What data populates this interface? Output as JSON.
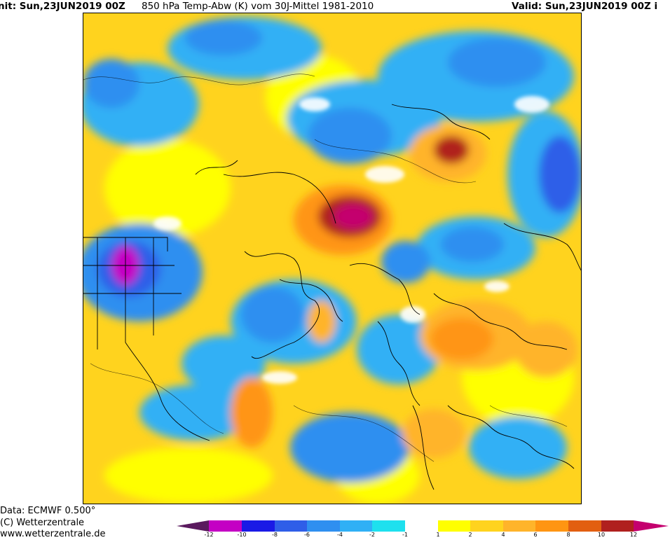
{
  "header": {
    "init": "nit: Sun,23JUN2019 00Z",
    "title": "850 hPa Temp-Abw (K) vom 30J-Mittel 1981-2010",
    "valid": "Valid: Sun,23JUN2019 00Z i"
  },
  "footer": {
    "data_source": "Data: ECMWF  0.500°",
    "copyright": "(C) Wetterzentrale",
    "website": "www.wetterzentrale.de"
  },
  "legend": {
    "ticks": [
      "-12",
      "-10",
      "-8",
      "-6",
      "-4",
      "-2",
      "-1",
      "1",
      "2",
      "4",
      "6",
      "8",
      "10",
      "12"
    ],
    "colors": {
      "lt_-12": "#5a1a5e",
      "-12_-10": "#c400c4",
      "-10_-8": "#1a1ae6",
      "-8_-6": "#2f5ee8",
      "-6_-4": "#2f8ff0",
      "-4_-2": "#30b0f5",
      "-2_-1": "#1ee0ee",
      "-1_1": "#ffffff",
      "1_2": "#ffff00",
      "2_4": "#ffd31e",
      "4_6": "#ffb42a",
      "6_8": "#ff9512",
      "8_10": "#e25f10",
      "10_12": "#b0201e",
      "gt_12": "#c4006e"
    }
  },
  "map": {
    "description_colors": {
      "background_warm": "#ffd31e",
      "contour_line": "#000000"
    }
  }
}
